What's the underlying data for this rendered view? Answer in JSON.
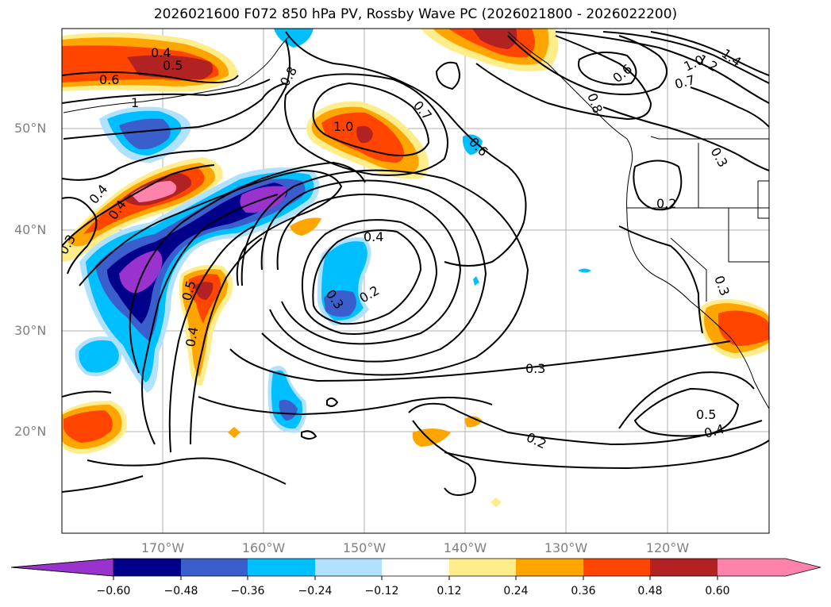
{
  "title": "2026021600 F072 850 hPa PV, Rossby Wave PC (2026021800 - 2026022200)",
  "map": {
    "lat_labels": [
      "50°N",
      "40°N",
      "30°N",
      "20°N"
    ],
    "lon_labels": [
      "170°W",
      "160°W",
      "150°W",
      "140°W",
      "130°W",
      "120°W"
    ],
    "contour_labels": [
      "0.4",
      "0.5",
      "0.6",
      "1",
      "0.8",
      "1.0",
      "0.7",
      "0.6",
      "0.8",
      "0.6",
      "1.2",
      "1.4",
      "1.0",
      "0.7",
      "0.3",
      "0.2",
      "0.4",
      "0.4",
      "0.3",
      "0.4",
      "0.5",
      "0.4",
      "0.3",
      "0.2",
      "0.3",
      "0.2",
      "0.5",
      "0.4",
      "0.3"
    ]
  },
  "colorbar": {
    "colors": [
      "#9a32cd",
      "#00008b",
      "#3a5fcd",
      "#00bfff",
      "#b0e2ff",
      "#ffffff",
      "#ffec8b",
      "#ffa500",
      "#ff4500",
      "#b22222",
      "#ff82ab"
    ],
    "tick_labels": [
      "−0.60",
      "−0.48",
      "−0.36",
      "−0.24",
      "−0.12",
      "0.12",
      "0.24",
      "0.36",
      "0.48",
      "0.60"
    ]
  }
}
